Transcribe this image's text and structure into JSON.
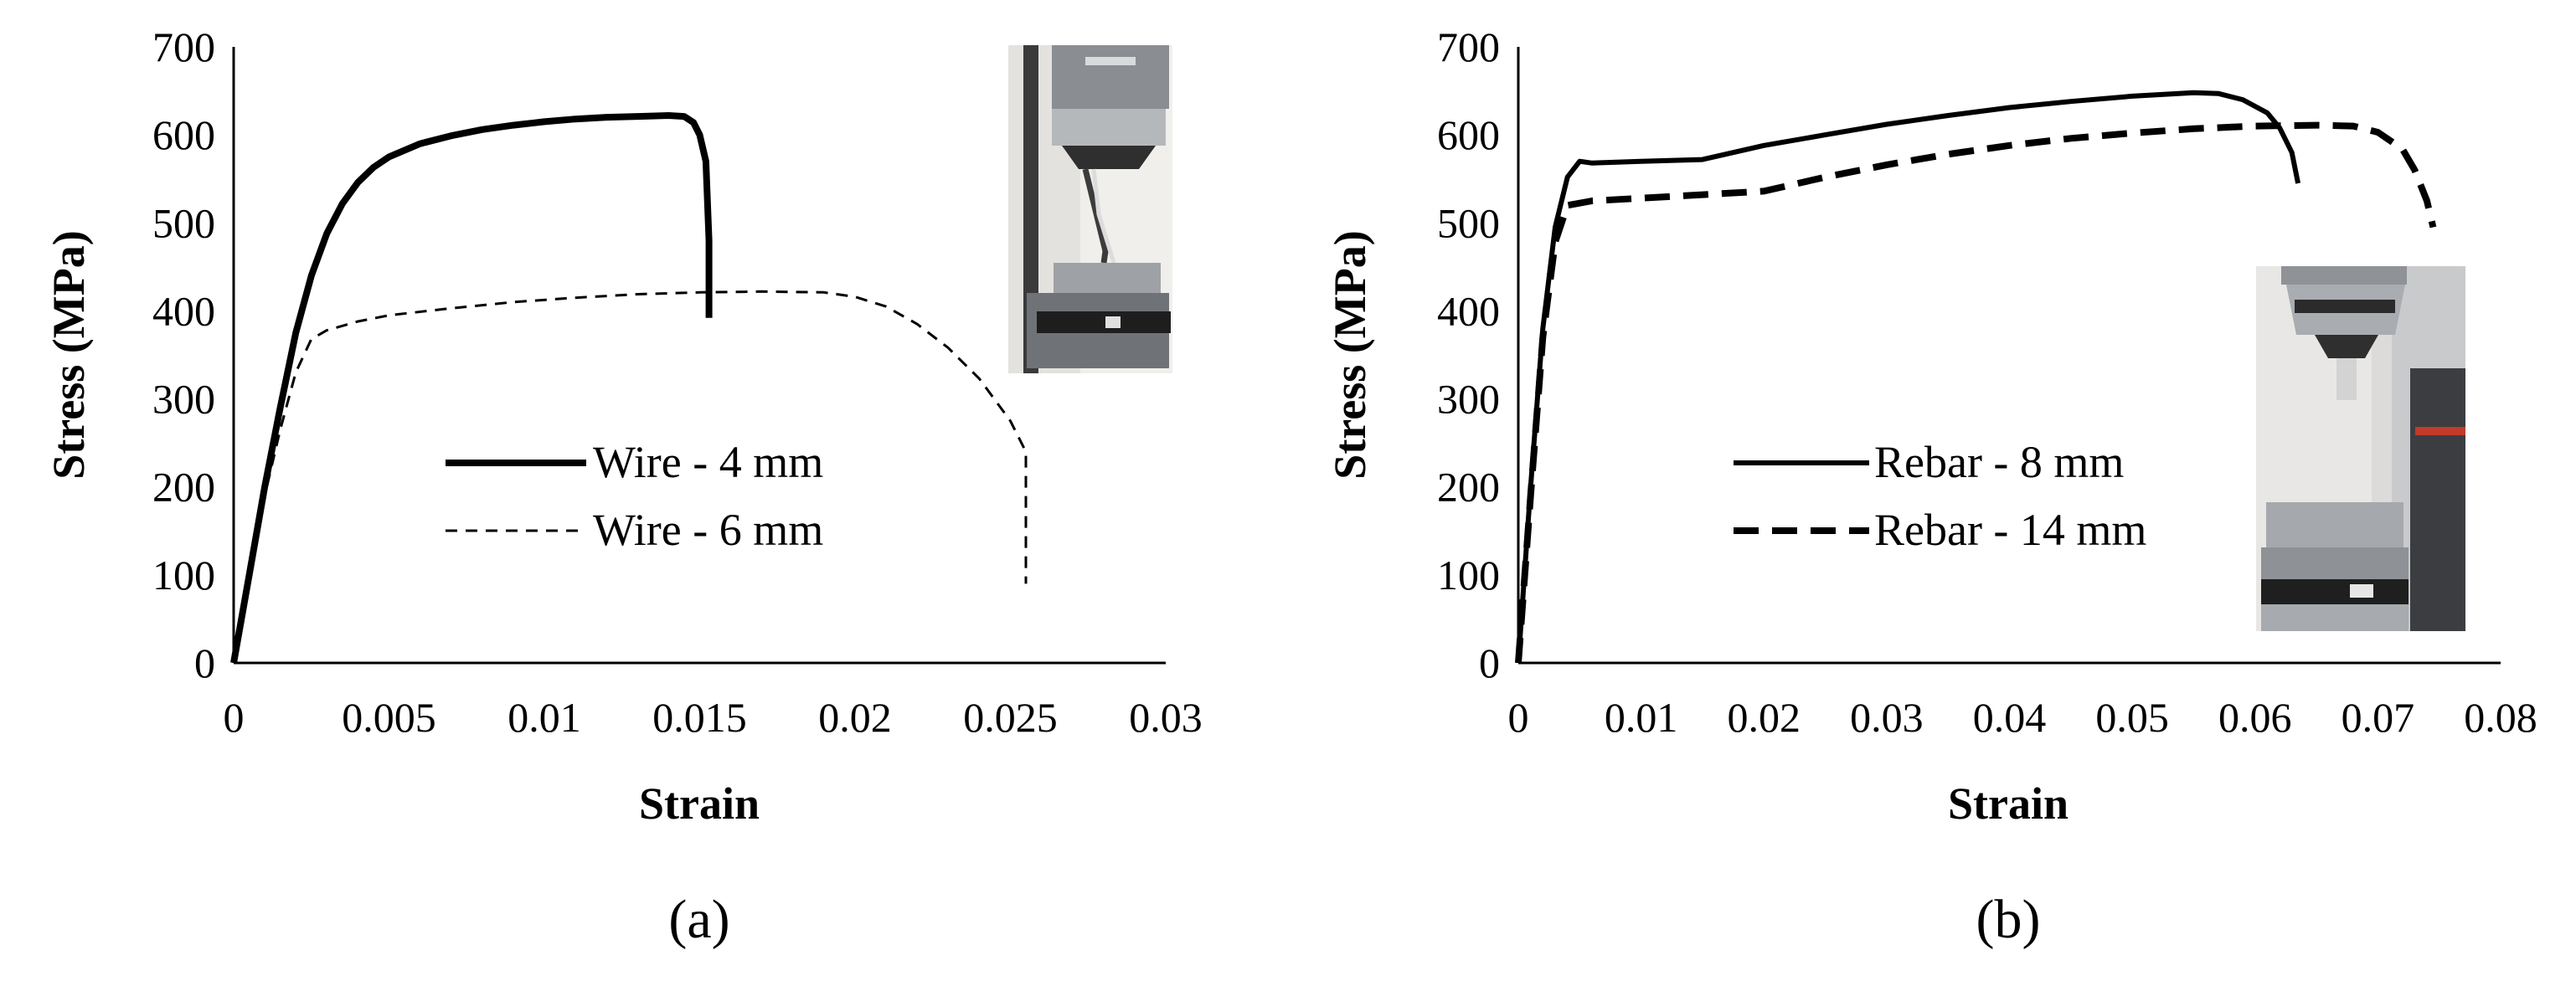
{
  "chart_data": [
    {
      "type": "line",
      "panel_label": "(a)",
      "xlabel": "Strain",
      "ylabel": "Stress (MPa)",
      "xlim": [
        0,
        0.03
      ],
      "ylim": [
        0,
        700
      ],
      "x_ticks": [
        "0",
        "0.005",
        "0.01",
        "0.015",
        "0.02",
        "0.025",
        "0.03"
      ],
      "y_ticks": [
        "0",
        "100",
        "200",
        "300",
        "400",
        "500",
        "600",
        "700"
      ],
      "grid": false,
      "legend_position": "center-right",
      "inset_photo": "tensile test machine with wire specimen",
      "series": [
        {
          "name": "Wire - 4 mm",
          "line_style": "solid-thick",
          "points": [
            [
              0,
              0
            ],
            [
              0.0005,
              100
            ],
            [
              0.001,
              200
            ],
            [
              0.0015,
              290
            ],
            [
              0.002,
              375
            ],
            [
              0.0025,
              440
            ],
            [
              0.003,
              488
            ],
            [
              0.0035,
              522
            ],
            [
              0.004,
              546
            ],
            [
              0.0045,
              563
            ],
            [
              0.005,
              575
            ],
            [
              0.006,
              590
            ],
            [
              0.007,
              599
            ],
            [
              0.008,
              606
            ],
            [
              0.009,
              611
            ],
            [
              0.01,
              615
            ],
            [
              0.011,
              618
            ],
            [
              0.012,
              620
            ],
            [
              0.013,
              621
            ],
            [
              0.014,
              622
            ],
            [
              0.0145,
              621
            ],
            [
              0.0148,
              614
            ],
            [
              0.015,
              600
            ],
            [
              0.0152,
              570
            ],
            [
              0.0153,
              480
            ],
            [
              0.0153,
              392
            ]
          ]
        },
        {
          "name": "Wire - 6 mm",
          "line_style": "dashed-thin",
          "points": [
            [
              0,
              0
            ],
            [
              0.0005,
              95
            ],
            [
              0.001,
              190
            ],
            [
              0.0015,
              265
            ],
            [
              0.002,
              330
            ],
            [
              0.0025,
              368
            ],
            [
              0.003,
              378
            ],
            [
              0.004,
              388
            ],
            [
              0.005,
              395
            ],
            [
              0.007,
              403
            ],
            [
              0.009,
              410
            ],
            [
              0.011,
              415
            ],
            [
              0.013,
              419
            ],
            [
              0.015,
              421
            ],
            [
              0.017,
              422
            ],
            [
              0.019,
              421
            ],
            [
              0.02,
              416
            ],
            [
              0.021,
              405
            ],
            [
              0.022,
              385
            ],
            [
              0.023,
              358
            ],
            [
              0.024,
              323
            ],
            [
              0.025,
              275
            ],
            [
              0.0255,
              240
            ],
            [
              0.0255,
              90
            ]
          ]
        }
      ]
    },
    {
      "type": "line",
      "panel_label": "(b)",
      "xlabel": "Strain",
      "ylabel": "Stress (MPa)",
      "xlim": [
        0,
        0.08
      ],
      "ylim": [
        0,
        700
      ],
      "x_ticks": [
        "0",
        "0.01",
        "0.02",
        "0.03",
        "0.04",
        "0.05",
        "0.06",
        "0.07",
        "0.08"
      ],
      "y_ticks": [
        "0",
        "100",
        "200",
        "300",
        "400",
        "500",
        "600",
        "700"
      ],
      "grid": false,
      "legend_position": "bottom-center",
      "inset_photo": "tensile test machine with rebar specimen",
      "series": [
        {
          "name": "Rebar - 8 mm",
          "line_style": "solid-thick",
          "points": [
            [
              0,
              0
            ],
            [
              0.001,
              200
            ],
            [
              0.002,
              380
            ],
            [
              0.003,
              495
            ],
            [
              0.004,
              552
            ],
            [
              0.005,
              570
            ],
            [
              0.006,
              568
            ],
            [
              0.01,
              570
            ],
            [
              0.015,
              572
            ],
            [
              0.02,
              588
            ],
            [
              0.025,
              600
            ],
            [
              0.03,
              612
            ],
            [
              0.035,
              622
            ],
            [
              0.04,
              631
            ],
            [
              0.045,
              638
            ],
            [
              0.05,
              644
            ],
            [
              0.055,
              648
            ],
            [
              0.057,
              647
            ],
            [
              0.059,
              640
            ],
            [
              0.061,
              625
            ],
            [
              0.062,
              608
            ],
            [
              0.063,
              580
            ],
            [
              0.0635,
              545
            ]
          ]
        },
        {
          "name": "Rebar - 14 mm",
          "line_style": "dashed-thick",
          "points": [
            [
              0,
              0
            ],
            [
              0.001,
              190
            ],
            [
              0.002,
              370
            ],
            [
              0.003,
              478
            ],
            [
              0.004,
              520
            ],
            [
              0.006,
              525
            ],
            [
              0.01,
              528
            ],
            [
              0.015,
              532
            ],
            [
              0.02,
              536
            ],
            [
              0.025,
              552
            ],
            [
              0.03,
              566
            ],
            [
              0.035,
              578
            ],
            [
              0.04,
              588
            ],
            [
              0.045,
              596
            ],
            [
              0.05,
              602
            ],
            [
              0.055,
              607
            ],
            [
              0.06,
              610
            ],
            [
              0.065,
              611
            ],
            [
              0.068,
              610
            ],
            [
              0.07,
              603
            ],
            [
              0.072,
              584
            ],
            [
              0.073,
              560
            ],
            [
              0.074,
              525
            ],
            [
              0.0745,
              495
            ]
          ]
        }
      ]
    }
  ]
}
